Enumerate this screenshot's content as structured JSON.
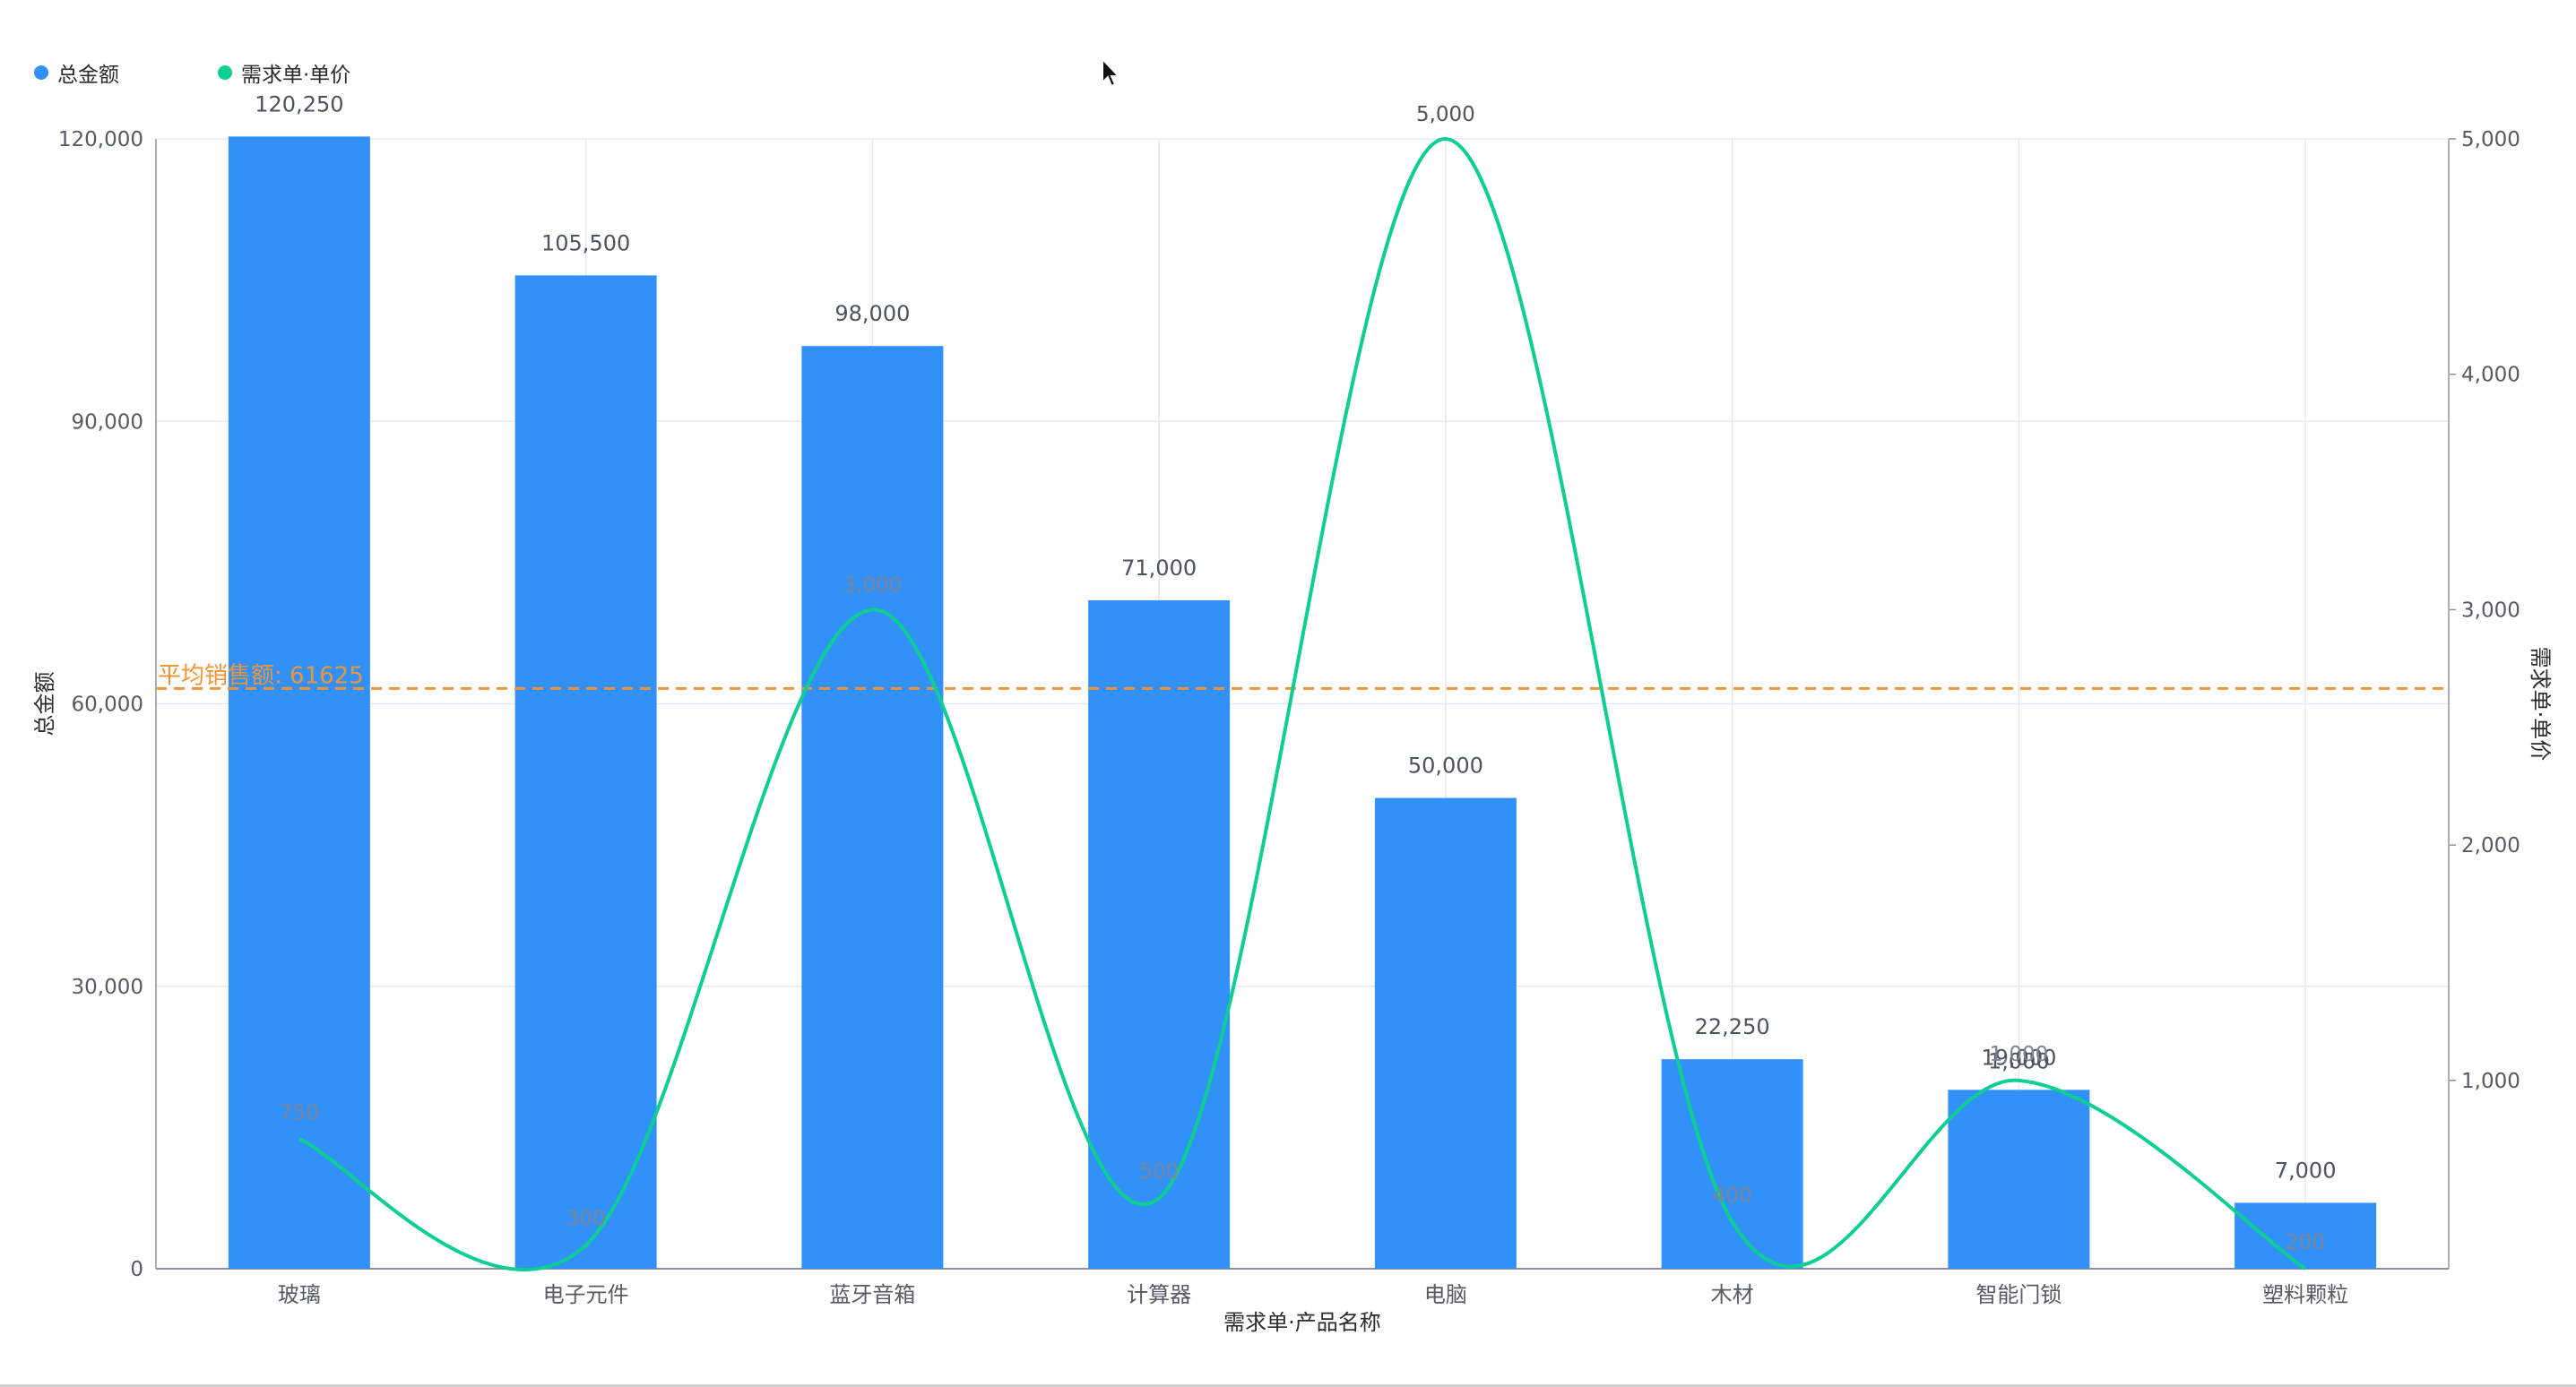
{
  "legend": {
    "bar_label": "总金额",
    "line_label": "需求单·单价"
  },
  "colors": {
    "bar": "#3290F9",
    "line": "#0ECF93",
    "avg_line": "#EE9537",
    "grid": "#E6E8F1",
    "axis_text": "#555b66",
    "value_text": "#4b5260"
  },
  "chart_data": {
    "type": "bar",
    "categories": [
      "玻璃",
      "电子元件",
      "蓝牙音箱",
      "计算器",
      "电脑",
      "木材",
      "智能门锁",
      "塑料颗粒"
    ],
    "series": [
      {
        "name": "总金额",
        "type": "bar",
        "axis": "left",
        "values": [
          120250,
          105500,
          98000,
          71000,
          50000,
          22250,
          19000,
          7000
        ],
        "labels": [
          "120,250",
          "105,500",
          "98,000",
          "71,000",
          "50,000",
          "22,250",
          "19,000",
          "7,000"
        ]
      },
      {
        "name": "需求单·单价",
        "type": "line",
        "smooth": true,
        "axis": "right",
        "values": [
          750,
          300,
          3000,
          500,
          5000,
          400,
          1000,
          200
        ],
        "labels": [
          "750",
          "300",
          "3,000",
          "500",
          "5,000",
          "400",
          "1,000",
          "200"
        ]
      }
    ],
    "extra_label": {
      "category_index": 6,
      "text": "1,000"
    },
    "xlabel": "需求单·产品名称",
    "ylabel": "总金额",
    "y2label": "需求单·单价",
    "ylim": [
      0,
      120000
    ],
    "yticks": [
      0,
      30000,
      60000,
      90000,
      120000
    ],
    "ytick_labels": [
      "0",
      "30,000",
      "60,000",
      "90,000",
      "120,000"
    ],
    "y2lim": [
      200,
      5000
    ],
    "y2ticks": [
      1000,
      2000,
      3000,
      4000,
      5000
    ],
    "y2tick_labels": [
      "1,000",
      "2,000",
      "3,000",
      "4,000",
      "5,000"
    ],
    "reference_line": {
      "value": 61625,
      "label": "平均销售额: 61625"
    },
    "grid": true,
    "legend_position": "top-left"
  }
}
